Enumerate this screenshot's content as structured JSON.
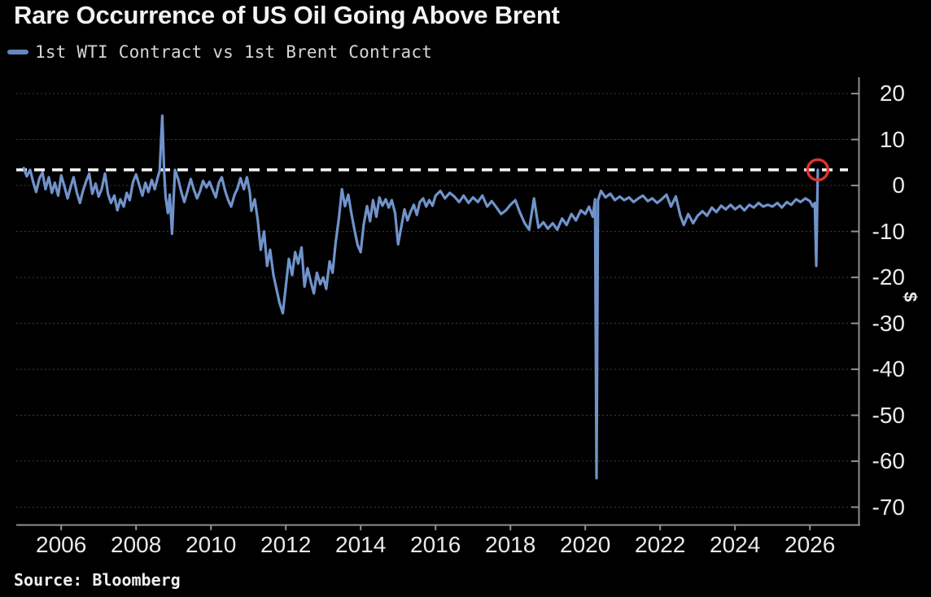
{
  "title": "Rare Occurrence of US Oil Going Above Brent",
  "legend": {
    "label": "1st WTI Contract vs 1st Brent Contract",
    "swatch_color": "#6486c0"
  },
  "source": {
    "text": "Source: Bloomberg"
  },
  "unit_label": "$",
  "colors": {
    "background": "#000000",
    "line": "#7093cb",
    "reference_line": "#f2f2f2",
    "marker_ring": "#de352c",
    "axis": "#8f8f8f",
    "gridline": "#3c3c3c",
    "text_primary": "#f3f3f3",
    "text_secondary": "#eaeaea"
  },
  "chart_data": {
    "type": "line",
    "title": "Rare Occurrence of US Oil Going Above Brent",
    "ylabel": "$",
    "legend_position": "top-left",
    "grid": "dotted-horizontal",
    "xlim": [
      2004.8,
      2027.3
    ],
    "ylim": [
      -73.8,
      23.55
    ],
    "x_ticks": [
      2006,
      2008,
      2010,
      2012,
      2014,
      2016,
      2018,
      2020,
      2022,
      2024,
      2026
    ],
    "y_ticks": [
      20,
      10,
      0,
      -10,
      -20,
      -30,
      -40,
      -50,
      -60,
      -70
    ],
    "reference_line": {
      "value": 3.4,
      "style": "dashed",
      "color": "#f2f2f2"
    },
    "end_marker": {
      "x": 2026.21,
      "y": 3.4,
      "ring_color": "#de352c"
    },
    "series": [
      {
        "name": "1st WTI Contract vs 1st Brent Contract",
        "color": "#7093cb",
        "points": [
          [
            2005.0,
            3.8
          ],
          [
            2005.08,
            2.0
          ],
          [
            2005.17,
            3.4
          ],
          [
            2005.25,
            0.8
          ],
          [
            2005.33,
            -1.4
          ],
          [
            2005.42,
            1.6
          ],
          [
            2005.5,
            2.8
          ],
          [
            2005.58,
            -0.8
          ],
          [
            2005.67,
            1.8
          ],
          [
            2005.75,
            -1.6
          ],
          [
            2005.83,
            0.6
          ],
          [
            2005.92,
            -2.2
          ],
          [
            2006.0,
            2.2
          ],
          [
            2006.08,
            0.0
          ],
          [
            2006.17,
            -2.8
          ],
          [
            2006.25,
            -0.4
          ],
          [
            2006.33,
            1.8
          ],
          [
            2006.42,
            -1.6
          ],
          [
            2006.5,
            -3.8
          ],
          [
            2006.58,
            -1.2
          ],
          [
            2006.67,
            1.0
          ],
          [
            2006.75,
            2.6
          ],
          [
            2006.83,
            -1.8
          ],
          [
            2006.92,
            0.4
          ],
          [
            2007.0,
            -2.4
          ],
          [
            2007.08,
            -0.8
          ],
          [
            2007.17,
            2.6
          ],
          [
            2007.25,
            -1.8
          ],
          [
            2007.33,
            -3.8
          ],
          [
            2007.42,
            -2.2
          ],
          [
            2007.5,
            -5.4
          ],
          [
            2007.58,
            -3.0
          ],
          [
            2007.67,
            -4.6
          ],
          [
            2007.75,
            -1.6
          ],
          [
            2007.83,
            -3.2
          ],
          [
            2007.92,
            0.8
          ],
          [
            2008.0,
            2.4
          ],
          [
            2008.08,
            0.2
          ],
          [
            2008.17,
            -2.2
          ],
          [
            2008.25,
            0.6
          ],
          [
            2008.33,
            -1.4
          ],
          [
            2008.42,
            1.2
          ],
          [
            2008.5,
            -0.8
          ],
          [
            2008.58,
            1.8
          ],
          [
            2008.63,
            3.2
          ],
          [
            2008.7,
            15.2
          ],
          [
            2008.75,
            3.0
          ],
          [
            2008.79,
            -2.5
          ],
          [
            2008.85,
            -6.0
          ],
          [
            2008.9,
            -2.0
          ],
          [
            2008.96,
            -10.5
          ],
          [
            2009.04,
            3.4
          ],
          [
            2009.13,
            1.2
          ],
          [
            2009.21,
            -1.5
          ],
          [
            2009.29,
            -3.6
          ],
          [
            2009.38,
            -1.0
          ],
          [
            2009.46,
            1.4
          ],
          [
            2009.54,
            -0.8
          ],
          [
            2009.63,
            -2.8
          ],
          [
            2009.71,
            -1.2
          ],
          [
            2009.79,
            1.0
          ],
          [
            2009.88,
            -0.4
          ],
          [
            2009.96,
            0.8
          ],
          [
            2010.04,
            -0.8
          ],
          [
            2010.13,
            -2.6
          ],
          [
            2010.21,
            0.6
          ],
          [
            2010.29,
            1.8
          ],
          [
            2010.38,
            -1.2
          ],
          [
            2010.46,
            -3.2
          ],
          [
            2010.54,
            -4.6
          ],
          [
            2010.63,
            -2.0
          ],
          [
            2010.71,
            -0.6
          ],
          [
            2010.79,
            1.6
          ],
          [
            2010.88,
            -0.8
          ],
          [
            2010.96,
            1.8
          ],
          [
            2011.04,
            -1.5
          ],
          [
            2011.08,
            -5.5
          ],
          [
            2011.17,
            -3.0
          ],
          [
            2011.25,
            -7.5
          ],
          [
            2011.33,
            -14.0
          ],
          [
            2011.42,
            -10.0
          ],
          [
            2011.5,
            -17.5
          ],
          [
            2011.58,
            -14.0
          ],
          [
            2011.67,
            -19.5
          ],
          [
            2011.75,
            -22.5
          ],
          [
            2011.83,
            -25.5
          ],
          [
            2011.92,
            -27.8
          ],
          [
            2012.0,
            -22.0
          ],
          [
            2012.08,
            -16.0
          ],
          [
            2012.17,
            -19.5
          ],
          [
            2012.25,
            -14.5
          ],
          [
            2012.33,
            -17.0
          ],
          [
            2012.42,
            -13.5
          ],
          [
            2012.5,
            -22.0
          ],
          [
            2012.58,
            -18.0
          ],
          [
            2012.67,
            -21.0
          ],
          [
            2012.75,
            -23.5
          ],
          [
            2012.83,
            -19.0
          ],
          [
            2012.92,
            -21.5
          ],
          [
            2013.0,
            -20.0
          ],
          [
            2013.08,
            -22.5
          ],
          [
            2013.17,
            -16.5
          ],
          [
            2013.25,
            -19.0
          ],
          [
            2013.33,
            -12.5
          ],
          [
            2013.42,
            -7.0
          ],
          [
            2013.5,
            -0.8
          ],
          [
            2013.58,
            -4.5
          ],
          [
            2013.67,
            -2.0
          ],
          [
            2013.75,
            -6.0
          ],
          [
            2013.83,
            -9.5
          ],
          [
            2013.92,
            -13.0
          ],
          [
            2014.0,
            -14.5
          ],
          [
            2014.08,
            -8.5
          ],
          [
            2014.17,
            -4.5
          ],
          [
            2014.25,
            -7.8
          ],
          [
            2014.33,
            -3.2
          ],
          [
            2014.42,
            -6.8
          ],
          [
            2014.5,
            -2.6
          ],
          [
            2014.58,
            -4.4
          ],
          [
            2014.67,
            -3.0
          ],
          [
            2014.75,
            -4.8
          ],
          [
            2014.83,
            -3.2
          ],
          [
            2014.92,
            -6.0
          ],
          [
            2015.0,
            -12.8
          ],
          [
            2015.08,
            -9.2
          ],
          [
            2015.17,
            -5.2
          ],
          [
            2015.25,
            -7.6
          ],
          [
            2015.33,
            -5.8
          ],
          [
            2015.42,
            -4.2
          ],
          [
            2015.5,
            -6.4
          ],
          [
            2015.58,
            -3.6
          ],
          [
            2015.67,
            -2.8
          ],
          [
            2015.75,
            -4.6
          ],
          [
            2015.83,
            -3.2
          ],
          [
            2015.92,
            -4.4
          ],
          [
            2016.0,
            -2.2
          ],
          [
            2016.13,
            -1.2
          ],
          [
            2016.25,
            -2.8
          ],
          [
            2016.38,
            -1.6
          ],
          [
            2016.5,
            -2.4
          ],
          [
            2016.63,
            -3.6
          ],
          [
            2016.75,
            -2.2
          ],
          [
            2016.88,
            -3.8
          ],
          [
            2017.0,
            -2.6
          ],
          [
            2017.13,
            -3.6
          ],
          [
            2017.25,
            -2.2
          ],
          [
            2017.38,
            -4.6
          ],
          [
            2017.5,
            -3.4
          ],
          [
            2017.63,
            -4.8
          ],
          [
            2017.75,
            -6.2
          ],
          [
            2017.88,
            -5.4
          ],
          [
            2018.0,
            -4.2
          ],
          [
            2018.13,
            -3.2
          ],
          [
            2018.25,
            -5.8
          ],
          [
            2018.38,
            -8.2
          ],
          [
            2018.5,
            -9.6
          ],
          [
            2018.63,
            -2.8
          ],
          [
            2018.75,
            -9.2
          ],
          [
            2018.88,
            -8.0
          ],
          [
            2019.0,
            -9.4
          ],
          [
            2019.13,
            -8.2
          ],
          [
            2019.25,
            -9.6
          ],
          [
            2019.38,
            -7.2
          ],
          [
            2019.5,
            -8.6
          ],
          [
            2019.63,
            -6.2
          ],
          [
            2019.75,
            -7.6
          ],
          [
            2019.88,
            -5.4
          ],
          [
            2020.0,
            -6.2
          ],
          [
            2020.1,
            -4.6
          ],
          [
            2020.2,
            -6.8
          ],
          [
            2020.26,
            -3.0
          ],
          [
            2020.3,
            -63.7
          ],
          [
            2020.34,
            -3.2
          ],
          [
            2020.42,
            -1.2
          ],
          [
            2020.54,
            -2.6
          ],
          [
            2020.67,
            -1.8
          ],
          [
            2020.79,
            -3.2
          ],
          [
            2020.92,
            -2.4
          ],
          [
            2021.04,
            -3.2
          ],
          [
            2021.17,
            -2.6
          ],
          [
            2021.29,
            -3.6
          ],
          [
            2021.42,
            -2.8
          ],
          [
            2021.54,
            -2.2
          ],
          [
            2021.67,
            -3.4
          ],
          [
            2021.79,
            -2.8
          ],
          [
            2021.92,
            -3.8
          ],
          [
            2022.04,
            -3.0
          ],
          [
            2022.17,
            -2.0
          ],
          [
            2022.29,
            -4.6
          ],
          [
            2022.42,
            -2.4
          ],
          [
            2022.54,
            -6.6
          ],
          [
            2022.63,
            -8.6
          ],
          [
            2022.75,
            -6.2
          ],
          [
            2022.88,
            -8.2
          ],
          [
            2023.0,
            -6.6
          ],
          [
            2023.13,
            -5.6
          ],
          [
            2023.25,
            -6.6
          ],
          [
            2023.38,
            -4.8
          ],
          [
            2023.5,
            -5.8
          ],
          [
            2023.63,
            -4.4
          ],
          [
            2023.75,
            -5.2
          ],
          [
            2023.88,
            -4.2
          ],
          [
            2024.0,
            -5.2
          ],
          [
            2024.13,
            -4.4
          ],
          [
            2024.25,
            -5.4
          ],
          [
            2024.38,
            -4.2
          ],
          [
            2024.5,
            -4.8
          ],
          [
            2024.63,
            -3.8
          ],
          [
            2024.75,
            -4.6
          ],
          [
            2024.88,
            -4.2
          ],
          [
            2025.0,
            -4.6
          ],
          [
            2025.13,
            -3.8
          ],
          [
            2025.25,
            -4.8
          ],
          [
            2025.38,
            -3.6
          ],
          [
            2025.5,
            -4.2
          ],
          [
            2025.63,
            -3.0
          ],
          [
            2025.75,
            -3.6
          ],
          [
            2025.88,
            -2.8
          ],
          [
            2026.0,
            -3.4
          ],
          [
            2026.08,
            -4.6
          ],
          [
            2026.13,
            -3.8
          ],
          [
            2026.17,
            -17.5
          ],
          [
            2026.21,
            3.4
          ]
        ]
      }
    ]
  }
}
